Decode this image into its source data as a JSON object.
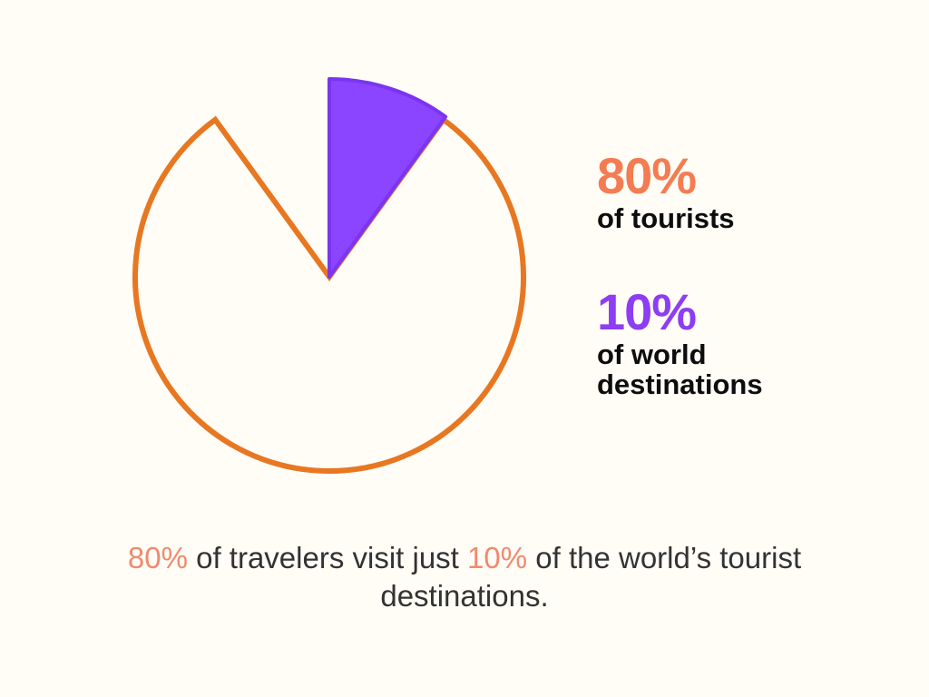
{
  "colors": {
    "background": "#fffdf6",
    "tourists": "#e87722",
    "tourists_label": "#f47c52",
    "destinations": "#8b44ff",
    "destinations_label": "#8d3df2",
    "caption_highlight": "#f08a6e",
    "caption_text": "#333333",
    "legend_text": "#0d0d0d"
  },
  "chart_data": {
    "type": "pie",
    "slices": [
      {
        "label": "of world destinations",
        "value": 10
      },
      {
        "label": "of tourists",
        "value": 80
      }
    ]
  },
  "legend": {
    "tourists": {
      "value": "80%",
      "label": "of tourists"
    },
    "destinations": {
      "value": "10%",
      "label": "of world destinations"
    }
  },
  "caption": {
    "pct1": "80%",
    "text1": " of travelers visit just ",
    "pct2": "10%",
    "text2": " of the world’s tourist destinations."
  }
}
